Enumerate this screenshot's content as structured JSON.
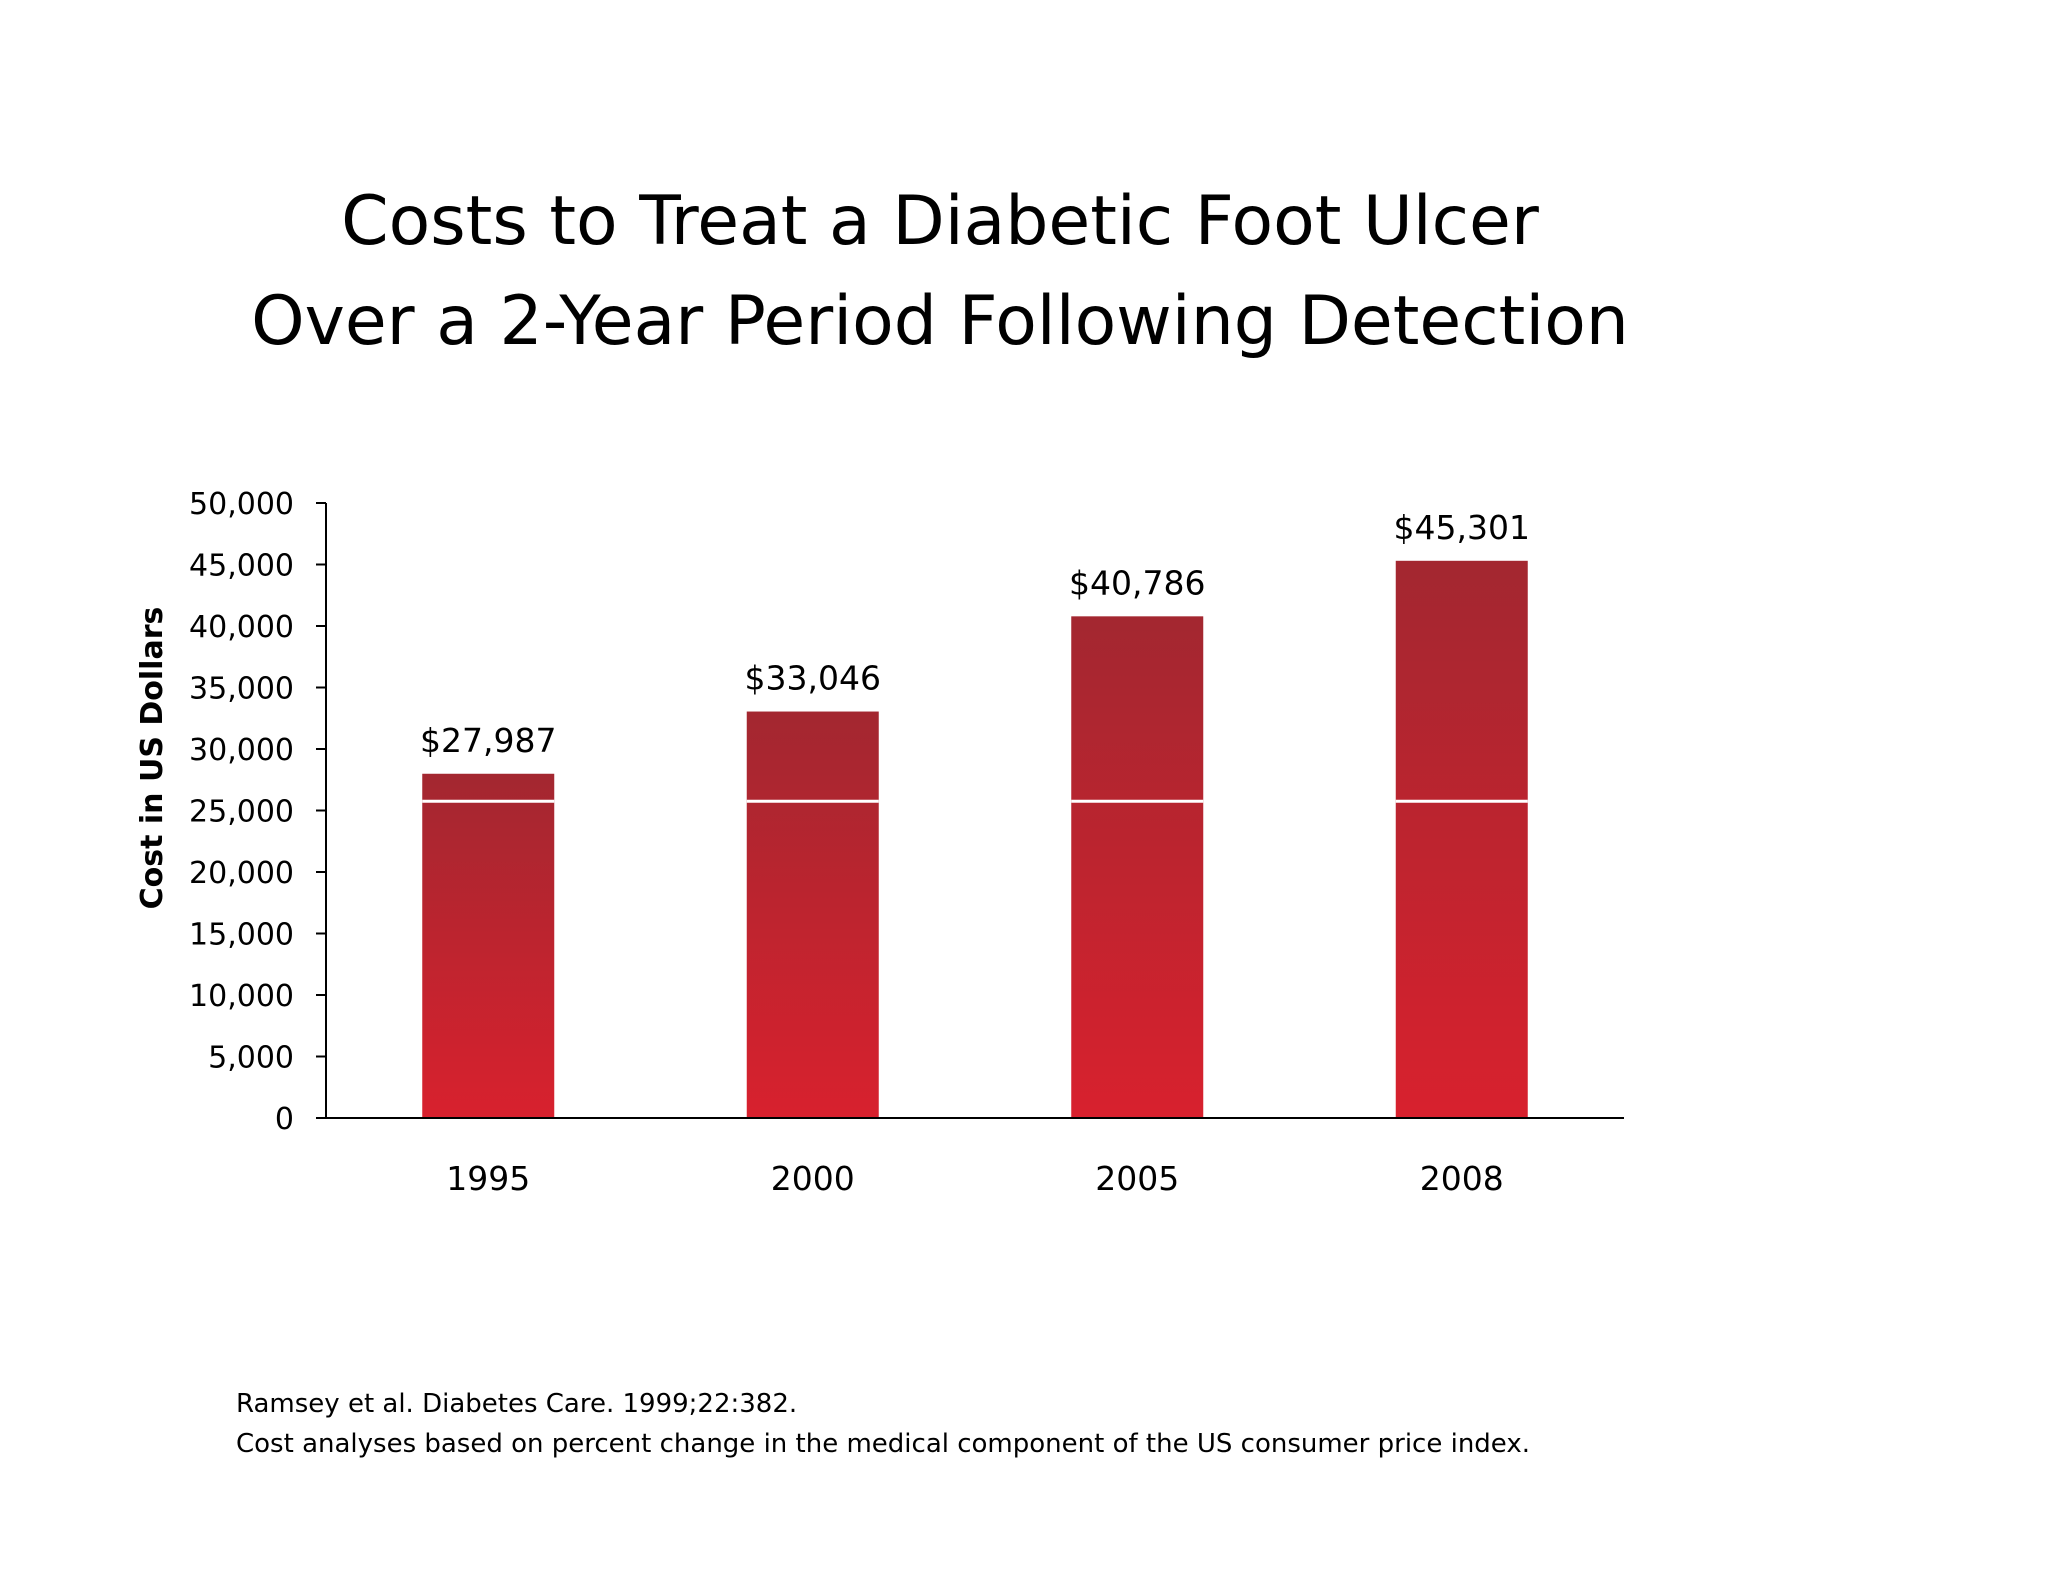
{
  "slide": {
    "title_line1": "Costs to Treat a Diabetic Foot Ulcer",
    "title_line2": "Over a 2-Year Period Following Detection",
    "footnote_line1": "Ramsey et al. Diabetes Care. 1999;22:382.",
    "footnote_line2": "Cost analyses based on percent change in the medical component of the US consumer price index."
  },
  "chart_data": {
    "type": "bar",
    "title": "Costs to Treat a Diabetic Foot Ulcer Over a 2-Year Period Following Detection",
    "categories": [
      "1995",
      "2000",
      "2005",
      "2008"
    ],
    "values": [
      27987,
      33046,
      40786,
      45301
    ],
    "data_labels": [
      "$27,987",
      "$33,046",
      "$40,786",
      "$45,301"
    ],
    "ylabel": "Cost in US Dollars",
    "xlabel": "",
    "ylim": [
      0,
      50000
    ],
    "yticks": [
      0,
      5000,
      10000,
      15000,
      20000,
      25000,
      30000,
      35000,
      40000,
      45000,
      50000
    ],
    "ytick_labels": [
      "0",
      "5,000",
      "10,000",
      "15,000",
      "20,000",
      "25,000",
      "30,000",
      "35,000",
      "40,000",
      "45,000",
      "50,000"
    ],
    "reference_line": 25750,
    "grid": false,
    "legend": "none",
    "colors": {
      "bar_bottom": "#d8212e",
      "bar_top": "#a32730",
      "axis": "#000000",
      "reference_line": "#ffffff"
    }
  }
}
